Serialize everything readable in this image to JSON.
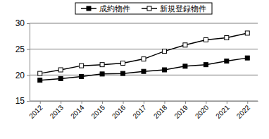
{
  "chart_data": {
    "type": "line",
    "categories": [
      "2012",
      "2013",
      "2014",
      "2015",
      "2016",
      "2017",
      "2018",
      "2019",
      "2020",
      "2021",
      "2022"
    ],
    "series": [
      {
        "name": "成約物件",
        "color": "#000000",
        "marker": "square",
        "line_style": "solid",
        "values": [
          19.0,
          19.3,
          19.7,
          20.2,
          20.3,
          20.7,
          21.0,
          21.7,
          22.0,
          22.7,
          23.3
        ]
      },
      {
        "name": "新規登録物件",
        "color": "#000000",
        "marker": "square-open",
        "line_style": "solid",
        "values": [
          20.3,
          21.0,
          21.8,
          22.0,
          22.3,
          23.1,
          24.6,
          25.8,
          26.8,
          27.2,
          28.1
        ]
      }
    ],
    "ylim": [
      15,
      30
    ],
    "yticks": [
      15,
      20,
      25,
      30
    ],
    "grid": true,
    "legend": "top"
  }
}
